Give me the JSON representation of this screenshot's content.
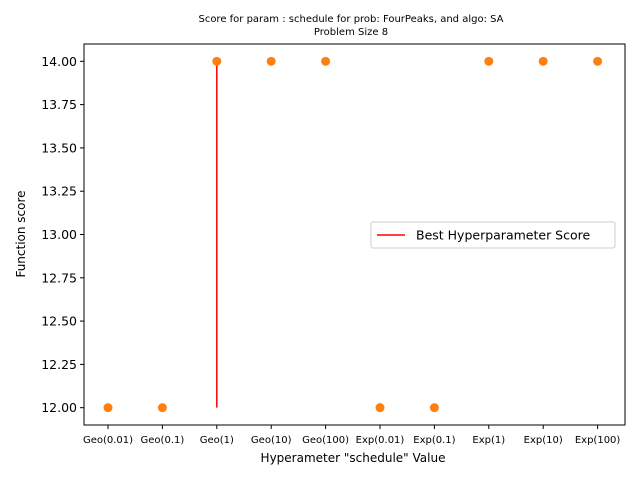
{
  "chart_data": {
    "type": "scatter",
    "title_line1": "Score for param : schedule for prob: FourPeaks, and algo: SA",
    "title_line2": "Problem Size 8",
    "xlabel": "Hyperameter \"schedule\" Value",
    "ylabel": "Function score",
    "categories": [
      "Geo(0.01)",
      "Geo(0.1)",
      "Geo(1)",
      "Geo(10)",
      "Geo(100)",
      "Exp(0.01)",
      "Exp(0.1)",
      "Exp(1)",
      "Exp(10)",
      "Exp(100)"
    ],
    "series": [
      {
        "values": [
          12,
          12,
          14,
          14,
          14,
          12,
          12,
          14,
          14,
          14
        ],
        "color": "#ff7f0e"
      }
    ],
    "best_line": {
      "name": "Best Hyperparameter Score",
      "category": "Geo(1)",
      "y_from": 12,
      "y_to": 14,
      "color": "#ff0000"
    },
    "ylim": [
      11.9,
      14.1
    ],
    "yticks": [
      12.0,
      12.25,
      12.5,
      12.75,
      13.0,
      13.25,
      13.5,
      13.75,
      14.0
    ],
    "ytick_labels": [
      "12.00",
      "12.25",
      "12.50",
      "12.75",
      "13.00",
      "13.25",
      "13.50",
      "13.75",
      "14.00"
    ],
    "grid": false,
    "legend_position": "center-right"
  }
}
